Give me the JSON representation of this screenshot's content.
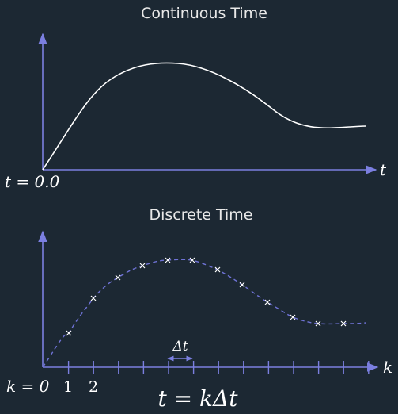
{
  "continuous": {
    "title": "Continuous Time",
    "axis_label": "t",
    "origin_label": "t = 0.0"
  },
  "discrete": {
    "title": "Discrete Time",
    "axis_label": "k",
    "tick_labels": [
      "k = 0",
      "1",
      "2"
    ],
    "step_label": "Δt",
    "formula": "t = kΔt"
  },
  "colors": {
    "background": "#1c2833",
    "axis": "#7b7fe0",
    "curve": "#ffffff",
    "dashed_curve": "#6f73d6",
    "samples": "#ffffff"
  }
}
